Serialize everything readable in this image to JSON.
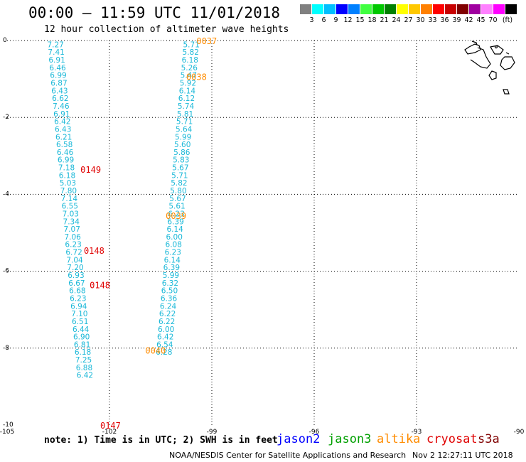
{
  "header": {
    "title": "00:00 – 11:59 UTC 11/01/2018",
    "subtitle": "12 hour collection of altimeter wave heights"
  },
  "colorbar": {
    "colors": [
      "#808080",
      "#00ffff",
      "#00bfff",
      "#0000ff",
      "#0080ff",
      "#40ff40",
      "#00c800",
      "#008000",
      "#ffff00",
      "#ffc800",
      "#ff8000",
      "#ff0000",
      "#c80000",
      "#800000",
      "#a000a0",
      "#ff80ff",
      "#ff00ff",
      "#000000"
    ],
    "labels": [
      "3",
      "6",
      "9",
      "12",
      "15",
      "18",
      "21",
      "24",
      "27",
      "30",
      "33",
      "36",
      "39",
      "42",
      "45",
      "70"
    ],
    "unit": "(ft)"
  },
  "chart_data": {
    "type": "scatter",
    "xlim": [
      -105,
      -90
    ],
    "ylim": [
      -10,
      0
    ],
    "x_ticks": [
      "-105",
      "-102",
      "-99",
      "-96",
      "-93",
      "-90"
    ],
    "y_ticks": [
      "0",
      "-2",
      "-4",
      "-6",
      "-8",
      "-10"
    ],
    "swh_tracks": [
      {
        "satellite": "jason2",
        "color": "#1ab8d8",
        "points": [
          {
            "x": -103.58,
            "y": -0.1,
            "label": "7.27"
          },
          {
            "x": -103.56,
            "y": -0.3,
            "label": "7.41"
          },
          {
            "x": -103.54,
            "y": -0.5,
            "label": "6.91"
          },
          {
            "x": -103.52,
            "y": -0.7,
            "label": "6.46"
          },
          {
            "x": -103.5,
            "y": -0.9,
            "label": "6.99"
          },
          {
            "x": -103.48,
            "y": -1.1,
            "label": "6.87"
          },
          {
            "x": -103.46,
            "y": -1.3,
            "label": "6.43"
          },
          {
            "x": -103.44,
            "y": -1.5,
            "label": "6.62"
          },
          {
            "x": -103.42,
            "y": -1.7,
            "label": "7.46"
          },
          {
            "x": -103.4,
            "y": -1.9,
            "label": "6.91"
          },
          {
            "x": -103.38,
            "y": -2.1,
            "label": "6.42"
          },
          {
            "x": -103.36,
            "y": -2.3,
            "label": "6.43"
          },
          {
            "x": -103.34,
            "y": -2.5,
            "label": "6.21"
          },
          {
            "x": -103.32,
            "y": -2.7,
            "label": "6.58"
          },
          {
            "x": -103.3,
            "y": -2.9,
            "label": "6.46"
          },
          {
            "x": -103.28,
            "y": -3.1,
            "label": "6.99"
          },
          {
            "x": -103.26,
            "y": -3.3,
            "label": "7.18"
          },
          {
            "x": -103.24,
            "y": -3.5,
            "label": "6.18"
          },
          {
            "x": -103.22,
            "y": -3.7,
            "label": "5.03"
          },
          {
            "x": -103.2,
            "y": -3.9,
            "label": "7.80"
          },
          {
            "x": -103.18,
            "y": -4.1,
            "label": "7.14"
          },
          {
            "x": -103.16,
            "y": -4.3,
            "label": "6.55"
          },
          {
            "x": -103.14,
            "y": -4.5,
            "label": "7.03"
          },
          {
            "x": -103.12,
            "y": -4.7,
            "label": "7.34"
          },
          {
            "x": -103.1,
            "y": -4.9,
            "label": "7.07"
          },
          {
            "x": -103.08,
            "y": -5.1,
            "label": "7.06"
          },
          {
            "x": -103.06,
            "y": -5.3,
            "label": "6.23"
          },
          {
            "x": -103.04,
            "y": -5.5,
            "label": "6.72"
          },
          {
            "x": -103.02,
            "y": -5.7,
            "label": "7.04"
          },
          {
            "x": -103.0,
            "y": -5.9,
            "label": "7.20"
          },
          {
            "x": -102.98,
            "y": -6.1,
            "label": "6.93"
          },
          {
            "x": -102.96,
            "y": -6.3,
            "label": "6.67"
          },
          {
            "x": -102.94,
            "y": -6.5,
            "label": "6.68"
          },
          {
            "x": -102.92,
            "y": -6.7,
            "label": "6.23"
          },
          {
            "x": -102.9,
            "y": -6.9,
            "label": "6.94"
          },
          {
            "x": -102.88,
            "y": -7.1,
            "label": "7.10"
          },
          {
            "x": -102.86,
            "y": -7.3,
            "label": "6.51"
          },
          {
            "x": -102.84,
            "y": -7.5,
            "label": "6.44"
          },
          {
            "x": -102.82,
            "y": -7.7,
            "label": "6.90"
          },
          {
            "x": -102.8,
            "y": -7.9,
            "label": "6.81"
          },
          {
            "x": -102.78,
            "y": -8.1,
            "label": "6.18"
          },
          {
            "x": -102.76,
            "y": -8.3,
            "label": "7.25"
          },
          {
            "x": -102.74,
            "y": -8.5,
            "label": "6.88"
          },
          {
            "x": -102.72,
            "y": -8.7,
            "label": "6.42"
          }
        ]
      },
      {
        "satellite": "jason2",
        "color": "#1ab8d8",
        "points": [
          {
            "x": -99.6,
            "y": -0.1,
            "label": "5.71"
          },
          {
            "x": -99.62,
            "y": -0.3,
            "label": "5.82"
          },
          {
            "x": -99.64,
            "y": -0.5,
            "label": "6.18"
          },
          {
            "x": -99.66,
            "y": -0.7,
            "label": "5.26"
          },
          {
            "x": -99.68,
            "y": -0.9,
            "label": "5.47"
          },
          {
            "x": -99.7,
            "y": -1.1,
            "label": "5.92"
          },
          {
            "x": -99.72,
            "y": -1.3,
            "label": "6.14"
          },
          {
            "x": -99.74,
            "y": -1.5,
            "label": "6.12"
          },
          {
            "x": -99.76,
            "y": -1.7,
            "label": "5.74"
          },
          {
            "x": -99.78,
            "y": -1.9,
            "label": "5.81"
          },
          {
            "x": -99.8,
            "y": -2.1,
            "label": "5.71"
          },
          {
            "x": -99.82,
            "y": -2.3,
            "label": "5.64"
          },
          {
            "x": -99.84,
            "y": -2.5,
            "label": "5.99"
          },
          {
            "x": -99.86,
            "y": -2.7,
            "label": "5.60"
          },
          {
            "x": -99.88,
            "y": -2.9,
            "label": "5.86"
          },
          {
            "x": -99.9,
            "y": -3.1,
            "label": "5.83"
          },
          {
            "x": -99.92,
            "y": -3.3,
            "label": "5.67"
          },
          {
            "x": -99.94,
            "y": -3.5,
            "label": "5.71"
          },
          {
            "x": -99.96,
            "y": -3.7,
            "label": "5.82"
          },
          {
            "x": -99.98,
            "y": -3.9,
            "label": "5.80"
          },
          {
            "x": -100.0,
            "y": -4.1,
            "label": "5.67"
          },
          {
            "x": -100.02,
            "y": -4.3,
            "label": "5.61"
          },
          {
            "x": -100.04,
            "y": -4.5,
            "label": "6.23"
          },
          {
            "x": -100.06,
            "y": -4.7,
            "label": "6.39"
          },
          {
            "x": -100.08,
            "y": -4.9,
            "label": "6.14"
          },
          {
            "x": -100.1,
            "y": -5.1,
            "label": "6.00"
          },
          {
            "x": -100.12,
            "y": -5.3,
            "label": "6.08"
          },
          {
            "x": -100.14,
            "y": -5.5,
            "label": "6.23"
          },
          {
            "x": -100.16,
            "y": -5.7,
            "label": "6.14"
          },
          {
            "x": -100.18,
            "y": -5.9,
            "label": "6.39"
          },
          {
            "x": -100.2,
            "y": -6.1,
            "label": "5.99"
          },
          {
            "x": -100.22,
            "y": -6.3,
            "label": "6.32"
          },
          {
            "x": -100.24,
            "y": -6.5,
            "label": "6.50"
          },
          {
            "x": -100.26,
            "y": -6.7,
            "label": "6.36"
          },
          {
            "x": -100.28,
            "y": -6.9,
            "label": "6.24"
          },
          {
            "x": -100.3,
            "y": -7.1,
            "label": "6.22"
          },
          {
            "x": -100.32,
            "y": -7.3,
            "label": "6.22"
          },
          {
            "x": -100.34,
            "y": -7.5,
            "label": "6.00"
          },
          {
            "x": -100.36,
            "y": -7.7,
            "label": "6.42"
          },
          {
            "x": -100.38,
            "y": -7.9,
            "label": "6.54"
          },
          {
            "x": -100.4,
            "y": -8.1,
            "label": "6.28"
          }
        ]
      }
    ],
    "time_labels": [
      {
        "x": -99.15,
        "y": 0.0,
        "label": "0037",
        "satellite": "altika",
        "color": "#ff8c00"
      },
      {
        "x": -99.45,
        "y": -0.93,
        "label": "0038",
        "satellite": "altika",
        "color": "#ff8c00"
      },
      {
        "x": -100.05,
        "y": -4.55,
        "label": "0039",
        "satellite": "altika",
        "color": "#ff8c00"
      },
      {
        "x": -100.65,
        "y": -8.05,
        "label": "0040",
        "satellite": "altika",
        "color": "#ff8c00"
      },
      {
        "x": -102.55,
        "y": -3.35,
        "label": "0149",
        "satellite": "cryosat",
        "color": "#e00000"
      },
      {
        "x": -102.45,
        "y": -5.45,
        "label": "0148",
        "satellite": "cryosat",
        "color": "#e00000"
      },
      {
        "x": -102.28,
        "y": -6.35,
        "label": "0148",
        "satellite": "cryosat",
        "color": "#e00000"
      },
      {
        "x": -101.97,
        "y": -10.0,
        "label": "0147",
        "satellite": "cryosat",
        "color": "#e00000"
      }
    ]
  },
  "footer": {
    "note": "note: 1) Time is in UTC; 2) SWH is in feet",
    "satellites": [
      {
        "name": "jason2",
        "color": "#0000ff"
      },
      {
        "name": "jason3",
        "color": "#00a000"
      },
      {
        "name": "altika",
        "color": "#ff8c00"
      },
      {
        "name": "cryosat",
        "color": "#e00000"
      },
      {
        "name": "s3a",
        "color": "#800000"
      }
    ],
    "credit": "NOAA/NESDIS Center for Satellite Applications and Research",
    "timestamp": "Nov  2 12:27:11 UTC 2018"
  }
}
